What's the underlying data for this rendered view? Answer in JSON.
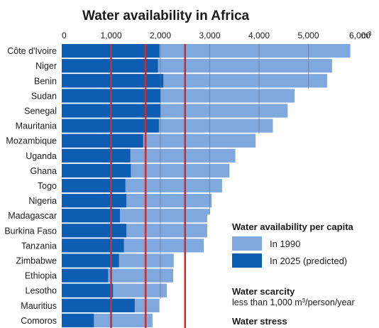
{
  "chart_data": {
    "type": "bar",
    "orientation": "horizontal",
    "title": "Water availability in Africa",
    "xlabel": "",
    "ylabel": "",
    "xlim": [
      0,
      6000
    ],
    "x_ticks": [
      {
        "value": 0,
        "label": "0"
      },
      {
        "value": 1000,
        "label": "1,000"
      },
      {
        "value": 2000,
        "label": "2,000"
      },
      {
        "value": 3000,
        "label": "3,000"
      },
      {
        "value": 4000,
        "label": "4,000"
      },
      {
        "value": 5000,
        "label": "5,000"
      },
      {
        "value": 6000,
        "label": "6,000"
      }
    ],
    "x_unit_label": "m",
    "x_unit_superscript": "3",
    "categories": [
      "Côte d'Ivoire",
      "Niger",
      "Benin",
      "Sudan",
      "Senegal",
      "Mauritania",
      "Mozambique",
      "Uganda",
      "Ghana",
      "Togo",
      "Nigeria",
      "Madagascar",
      "Burkina Faso",
      "Tanzania",
      "Zimbabwe",
      "Ethiopia",
      "Lesotho",
      "Mauritius",
      "Comoros"
    ],
    "series": [
      {
        "name": "In 1990",
        "color": "#7fa8de",
        "values": [
          5850,
          5480,
          5380,
          4720,
          4580,
          4280,
          3930,
          3520,
          3400,
          3250,
          3040,
          3000,
          2990,
          2880,
          2270,
          2260,
          2130,
          1980,
          1840
        ]
      },
      {
        "name": "In 2025 (predicted)",
        "color": "#0d5db3",
        "values": [
          1980,
          1950,
          2060,
          2000,
          2000,
          1970,
          1650,
          1390,
          1400,
          1290,
          1310,
          1180,
          1310,
          1260,
          1160,
          940,
          1040,
          1480,
          650
        ]
      }
    ],
    "reference_lines": [
      {
        "value": 1000,
        "color": "#d42a2a"
      },
      {
        "value": 1700,
        "color": "#d42a2a"
      },
      {
        "value": 2500,
        "color": "#d42a2a"
      }
    ],
    "legend": {
      "title": "Water availability per capita",
      "placement": "bottom-right"
    },
    "notes": [
      {
        "title": "Water scarcity",
        "text_before": "less than 1,000 m",
        "superscript": "3",
        "text_after": "/person/year"
      },
      {
        "title": "Water stress",
        "text_before": "",
        "superscript": "",
        "text_after": ""
      }
    ],
    "grid": "vertical",
    "colors": {
      "grid": "#5a6e8c",
      "text": "#1b1b1b"
    }
  }
}
